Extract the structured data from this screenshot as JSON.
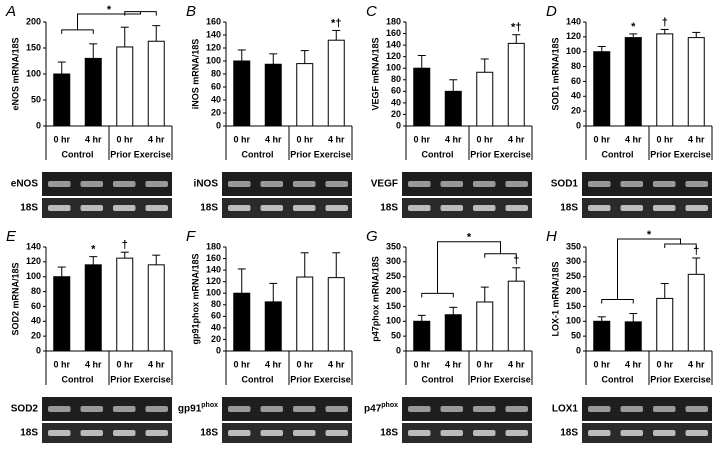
{
  "chart_data": [
    {
      "type": "bar",
      "panel": "A",
      "ylabel": "eNOS mRNA/18S",
      "categories": [
        "0 hr",
        "4 hr",
        "0 hr",
        "4 hr"
      ],
      "groups": [
        "Control",
        "Prior Exercise"
      ],
      "values": [
        100,
        130,
        152,
        163
      ],
      "errors": [
        23,
        28,
        38,
        30
      ],
      "colors": [
        "#000000",
        "#000000",
        "#ffffff",
        "#ffffff"
      ],
      "ylim": [
        0,
        200
      ],
      "yticks": [
        0,
        50,
        100,
        150,
        200
      ],
      "bracket_label": "*",
      "gels": [
        {
          "label": "eNOS"
        },
        {
          "label": "18S"
        }
      ]
    },
    {
      "type": "bar",
      "panel": "B",
      "ylabel": "iNOS mRNA/18S",
      "categories": [
        "0 hr",
        "4 hr",
        "0 hr",
        "4 hr"
      ],
      "groups": [
        "Control",
        "Prior Exercise"
      ],
      "values": [
        100,
        95,
        96,
        132
      ],
      "errors": [
        17,
        16,
        20,
        15
      ],
      "colors": [
        "#000000",
        "#000000",
        "#ffffff",
        "#ffffff"
      ],
      "ylim": [
        0,
        160
      ],
      "yticks": [
        0,
        20,
        40,
        60,
        80,
        100,
        120,
        140,
        160
      ],
      "bar_annotations": [
        null,
        null,
        null,
        "*†"
      ],
      "gels": [
        {
          "label": "iNOS"
        },
        {
          "label": "18S"
        }
      ]
    },
    {
      "type": "bar",
      "panel": "C",
      "ylabel": "VEGF mRNA/18S",
      "categories": [
        "0 hr",
        "4 hr",
        "0 hr",
        "4 hr"
      ],
      "groups": [
        "Control",
        "Prior Exercise"
      ],
      "values": [
        100,
        60,
        93,
        143
      ],
      "errors": [
        22,
        20,
        23,
        15
      ],
      "colors": [
        "#000000",
        "#000000",
        "#ffffff",
        "#ffffff"
      ],
      "ylim": [
        0,
        180
      ],
      "yticks": [
        0,
        20,
        40,
        60,
        80,
        100,
        120,
        140,
        160,
        180
      ],
      "bar_annotations": [
        null,
        null,
        null,
        "*†"
      ],
      "gels": [
        {
          "label": "VEGF"
        },
        {
          "label": "18S"
        }
      ]
    },
    {
      "type": "bar",
      "panel": "D",
      "ylabel": "SOD1 mRNA/18S",
      "categories": [
        "0 hr",
        "4 hr",
        "0 hr",
        "4 hr"
      ],
      "groups": [
        "Control",
        "Prior Exercise"
      ],
      "values": [
        100,
        119,
        124,
        119
      ],
      "errors": [
        7,
        5,
        6,
        7
      ],
      "colors": [
        "#000000",
        "#000000",
        "#ffffff",
        "#ffffff"
      ],
      "ylim": [
        0,
        140
      ],
      "yticks": [
        0,
        20,
        40,
        60,
        80,
        100,
        120,
        140
      ],
      "bar_annotations": [
        null,
        "*",
        "†",
        null
      ],
      "gels": [
        {
          "label": "SOD1"
        },
        {
          "label": "18S"
        }
      ]
    },
    {
      "type": "bar",
      "panel": "E",
      "ylabel": "SOD2 mRNA/18S",
      "categories": [
        "0 hr",
        "4 hr",
        "0 hr",
        "4 hr"
      ],
      "groups": [
        "Control",
        "Prior Exercise"
      ],
      "values": [
        100,
        116,
        125,
        116
      ],
      "errors": [
        13,
        11,
        8,
        13
      ],
      "colors": [
        "#000000",
        "#000000",
        "#ffffff",
        "#ffffff"
      ],
      "ylim": [
        0,
        140
      ],
      "yticks": [
        0,
        20,
        40,
        60,
        80,
        100,
        120,
        140
      ],
      "bar_annotations": [
        null,
        "*",
        "†",
        null
      ],
      "gels": [
        {
          "label": "SOD2"
        },
        {
          "label": "18S"
        }
      ]
    },
    {
      "type": "bar",
      "panel": "F",
      "ylabel": "gp91phox mRNA/18S",
      "categories": [
        "0 hr",
        "4 hr",
        "0 hr",
        "4 hr"
      ],
      "groups": [
        "Control",
        "Prior Exercise"
      ],
      "values": [
        100,
        85,
        128,
        127
      ],
      "errors": [
        42,
        32,
        42,
        43
      ],
      "colors": [
        "#000000",
        "#000000",
        "#ffffff",
        "#ffffff"
      ],
      "ylim": [
        0,
        180
      ],
      "yticks": [
        0,
        20,
        40,
        60,
        80,
        100,
        120,
        140,
        160,
        180
      ],
      "gels": [
        {
          "label": "gp91",
          "sup": "phox"
        },
        {
          "label": "18S"
        }
      ]
    },
    {
      "type": "bar",
      "panel": "G",
      "ylabel": "p47phox mRNA/18S",
      "categories": [
        "0 hr",
        "4 hr",
        "0 hr",
        "4 hr"
      ],
      "groups": [
        "Control",
        "Prior Exercise"
      ],
      "values": [
        100,
        122,
        165,
        235
      ],
      "errors": [
        20,
        25,
        50,
        45
      ],
      "colors": [
        "#000000",
        "#000000",
        "#ffffff",
        "#ffffff"
      ],
      "ylim": [
        0,
        350
      ],
      "yticks": [
        0,
        50,
        100,
        150,
        200,
        250,
        300,
        350
      ],
      "bracket_label": "*",
      "bar_annotations": [
        null,
        null,
        null,
        "†"
      ],
      "gels": [
        {
          "label": "p47",
          "sup": "phox"
        },
        {
          "label": "18S"
        }
      ]
    },
    {
      "type": "bar",
      "panel": "H",
      "ylabel": "LOX-1 mRNA/18S",
      "categories": [
        "0 hr",
        "4 hr",
        "0 hr",
        "4 hr"
      ],
      "groups": [
        "Control",
        "Prior Exercise"
      ],
      "values": [
        100,
        98,
        177,
        258
      ],
      "errors": [
        15,
        28,
        50,
        55
      ],
      "colors": [
        "#000000",
        "#000000",
        "#ffffff",
        "#ffffff"
      ],
      "ylim": [
        0,
        350
      ],
      "yticks": [
        0,
        50,
        100,
        150,
        200,
        250,
        300,
        350
      ],
      "bracket_label": "*",
      "bar_annotations": [
        null,
        null,
        null,
        "†"
      ],
      "gels": [
        {
          "label": "LOX1"
        },
        {
          "label": "18S"
        }
      ]
    }
  ]
}
